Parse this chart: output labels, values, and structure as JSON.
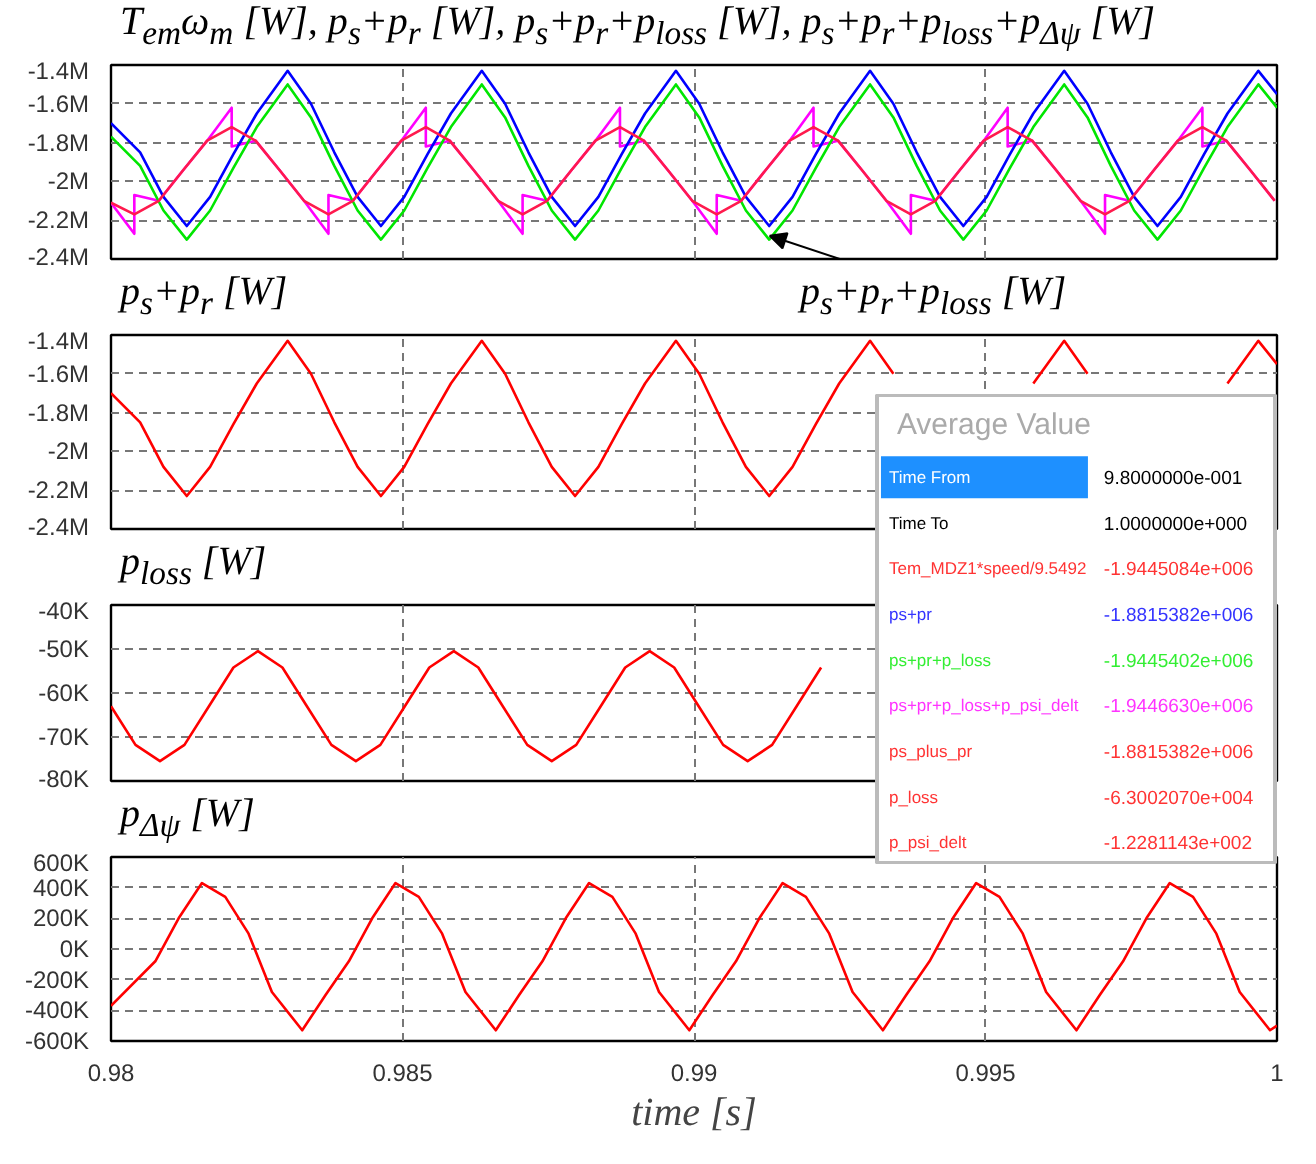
{
  "chart_data": [
    {
      "type": "line",
      "title": "T$_{em}$ω$_{m}$ [W], p$_{s}$+p$_{r}$ [W], p$_{s}$+p$_{r}$+p$_{loss}$ [W], p$_{s}$+p$_{r}$+p$_{loss}$+p$_{Δψ}$ [W]",
      "xlim": [
        0.98,
        1.0
      ],
      "xticks": [
        0.98,
        0.985,
        0.99,
        0.995,
        1
      ],
      "ylim": [
        -2400000,
        -1400000
      ],
      "yticks": [
        {
          "value": -2400000,
          "label": "-2.4M"
        },
        {
          "value": -2200000,
          "label": "-2.2M"
        },
        {
          "value": -2000000,
          "label": "-2M"
        },
        {
          "value": -1800000,
          "label": "-1.8M"
        },
        {
          "value": -1600000,
          "label": "-1.6M"
        },
        {
          "value": -1400000,
          "label": "-1.4M"
        }
      ],
      "grid": true,
      "tick_labels": "y",
      "annotations": [
        {
          "text": "p$_{s}$+p$_{r}$+p$_{loss}$ [W]",
          "x": 0.9913,
          "y": -2280000
        }
      ],
      "series": [
        {
          "color": "#ff00ff",
          "x": [
            0.98,
            0.9804,
            0.9804,
            0.98082,
            0.98123,
            0.98165,
            0.98207,
            0.98207,
            0.98248,
            0.9829,
            0.98331,
            0.98373,
            0.98373,
            0.98415,
            0.98456,
            0.98498,
            0.9854,
            0.9854,
            0.98581,
            0.98623,
            0.98664,
            0.98706,
            0.98706,
            0.98748,
            0.98789,
            0.98831,
            0.98873,
            0.98873,
            0.98914,
            0.98956,
            0.98997,
            0.99039,
            0.99039,
            0.99081,
            0.99122,
            0.99164,
            0.99205,
            0.99205,
            0.99247,
            0.99289,
            0.9933,
            0.99372,
            0.99372,
            0.99414,
            0.99455,
            0.99497,
            0.99538,
            0.99538,
            0.9958,
            0.99622,
            0.99663,
            0.99705,
            0.99705,
            0.99747,
            0.99788,
            0.9983,
            0.99872,
            0.99872,
            0.99913,
            0.99955,
            0.99996
          ],
          "values": [
            -2110000,
            -2270000,
            -2070000,
            -2100000,
            -1945000,
            -1790000,
            -1620000,
            -1820000,
            -1790000,
            -1945000,
            -2100000,
            -2270000,
            -2070000,
            -2100000,
            -1945000,
            -1790000,
            -1620000,
            -1820000,
            -1790000,
            -1945000,
            -2100000,
            -2270000,
            -2070000,
            -2100000,
            -1945000,
            -1790000,
            -1620000,
            -1820000,
            -1790000,
            -1945000,
            -2100000,
            -2270000,
            -2070000,
            -2100000,
            -1945000,
            -1790000,
            -1620000,
            -1820000,
            -1790000,
            -1945000,
            -2100000,
            -2270000,
            -2070000,
            -2100000,
            -1945000,
            -1790000,
            -1620000,
            -1820000,
            -1790000,
            -1945000,
            -2100000,
            -2270000,
            -2070000,
            -2100000,
            -1945000,
            -1790000,
            -1620000,
            -1820000,
            -1790000,
            -1945000,
            -2100000
          ]
        },
        {
          "color": "#00e600",
          "x": [
            0.98,
            0.9805,
            0.9809,
            0.9813,
            0.9817,
            0.9821,
            0.9825,
            0.98303,
            0.98343,
            0.98383,
            0.98423,
            0.98463,
            0.98503,
            0.98543,
            0.98583,
            0.98636,
            0.98676,
            0.98716,
            0.98756,
            0.98796,
            0.98836,
            0.98876,
            0.98916,
            0.98969,
            0.99009,
            0.99049,
            0.99089,
            0.99129,
            0.99169,
            0.99209,
            0.99249,
            0.99302,
            0.99342,
            0.99382,
            0.99422,
            0.99462,
            0.99502,
            0.99542,
            0.99582,
            0.99635,
            0.99675,
            0.99715,
            0.99755,
            0.99795,
            0.99835,
            0.99875,
            0.99915,
            0.99968,
            1.0
          ],
          "values": [
            -1770000,
            -1920000,
            -2150000,
            -2300000,
            -2150000,
            -1930000,
            -1720000,
            -1500000,
            -1670000,
            -1920000,
            -2150000,
            -2300000,
            -2150000,
            -1930000,
            -1720000,
            -1500000,
            -1670000,
            -1920000,
            -2150000,
            -2300000,
            -2150000,
            -1930000,
            -1720000,
            -1500000,
            -1670000,
            -1920000,
            -2150000,
            -2300000,
            -2150000,
            -1930000,
            -1720000,
            -1500000,
            -1670000,
            -1920000,
            -2150000,
            -2300000,
            -2150000,
            -1930000,
            -1720000,
            -1500000,
            -1670000,
            -1920000,
            -2150000,
            -2300000,
            -2150000,
            -1930000,
            -1720000,
            -1500000,
            -1620000
          ]
        },
        {
          "color": "#0000ff",
          "x": [
            0.98,
            0.9805,
            0.9809,
            0.9813,
            0.9817,
            0.9821,
            0.9825,
            0.98303,
            0.98343,
            0.98383,
            0.98423,
            0.98463,
            0.98503,
            0.98543,
            0.98583,
            0.98636,
            0.98676,
            0.98716,
            0.98756,
            0.98796,
            0.98836,
            0.98876,
            0.98916,
            0.98969,
            0.99009,
            0.99049,
            0.99089,
            0.99129,
            0.99169,
            0.99209,
            0.99249,
            0.99302,
            0.99342,
            0.99382,
            0.99422,
            0.99462,
            0.99502,
            0.99542,
            0.99582,
            0.99635,
            0.99675,
            0.99715,
            0.99755,
            0.99795,
            0.99835,
            0.99875,
            0.99915,
            0.99968,
            1.0
          ],
          "values": [
            -1700000,
            -1850000,
            -2080000,
            -2230000,
            -2080000,
            -1860000,
            -1650000,
            -1430000,
            -1600000,
            -1850000,
            -2080000,
            -2230000,
            -2080000,
            -1860000,
            -1650000,
            -1430000,
            -1600000,
            -1850000,
            -2080000,
            -2230000,
            -2080000,
            -1860000,
            -1650000,
            -1430000,
            -1600000,
            -1850000,
            -2080000,
            -2230000,
            -2080000,
            -1860000,
            -1650000,
            -1430000,
            -1600000,
            -1850000,
            -2080000,
            -2230000,
            -2080000,
            -1860000,
            -1650000,
            -1430000,
            -1600000,
            -1850000,
            -2080000,
            -2230000,
            -2080000,
            -1860000,
            -1650000,
            -1430000,
            -1550000
          ]
        },
        {
          "color": "#ff1a4d",
          "x": [
            0.98,
            0.9804,
            0.98082,
            0.98123,
            0.98165,
            0.98207,
            0.98248,
            0.9829,
            0.98331,
            0.98373,
            0.98415,
            0.98456,
            0.98498,
            0.9854,
            0.98581,
            0.98623,
            0.98664,
            0.98706,
            0.98748,
            0.98789,
            0.98831,
            0.98873,
            0.98914,
            0.98956,
            0.98997,
            0.99039,
            0.99081,
            0.99122,
            0.99164,
            0.99205,
            0.99247,
            0.99289,
            0.9933,
            0.99372,
            0.99414,
            0.99455,
            0.99497,
            0.99538,
            0.9958,
            0.99622,
            0.99663,
            0.99705,
            0.99747,
            0.99788,
            0.9983,
            0.99872,
            0.99913,
            0.99955,
            0.99996
          ],
          "values": [
            -2110000,
            -2170000,
            -2100000,
            -1945000,
            -1790000,
            -1720000,
            -1790000,
            -1945000,
            -2100000,
            -2170000,
            -2100000,
            -1945000,
            -1790000,
            -1720000,
            -1790000,
            -1945000,
            -2100000,
            -2170000,
            -2100000,
            -1945000,
            -1790000,
            -1720000,
            -1790000,
            -1945000,
            -2100000,
            -2170000,
            -2100000,
            -1945000,
            -1790000,
            -1720000,
            -1790000,
            -1945000,
            -2100000,
            -2170000,
            -2100000,
            -1945000,
            -1790000,
            -1720000,
            -1790000,
            -1945000,
            -2100000,
            -2170000,
            -2100000,
            -1945000,
            -1790000,
            -1720000,
            -1790000,
            -1945000,
            -2100000
          ]
        }
      ]
    },
    {
      "type": "line",
      "title": "p$_{s}$+p$_{r}$ [W]",
      "xlim": [
        0.98,
        1.0
      ],
      "xticks": [
        0.98,
        0.985,
        0.99,
        0.995,
        1
      ],
      "ylim": [
        -2400000,
        -1400000
      ],
      "yticks": [
        {
          "value": -2400000,
          "label": "-2.4M"
        },
        {
          "value": -2200000,
          "label": "-2.2M"
        },
        {
          "value": -2000000,
          "label": "-2M"
        },
        {
          "value": -1800000,
          "label": "-1.8M"
        },
        {
          "value": -1600000,
          "label": "-1.6M"
        },
        {
          "value": -1400000,
          "label": "-1.4M"
        }
      ],
      "grid": true,
      "tick_labels": "y",
      "series": [
        {
          "color": "#ff0000",
          "x": [
            0.98,
            0.9805,
            0.9809,
            0.9813,
            0.9817,
            0.9821,
            0.9825,
            0.98303,
            0.98343,
            0.98383,
            0.98423,
            0.98463,
            0.98503,
            0.98543,
            0.98583,
            0.98636,
            0.98676,
            0.98716,
            0.98756,
            0.98796,
            0.98836,
            0.98876,
            0.98916,
            0.98969,
            0.99009,
            0.99049,
            0.99089,
            0.99129,
            0.99169,
            0.99209,
            0.99249,
            0.99302,
            0.99342,
            0.99382,
            0.99422,
            0.99462,
            0.99502,
            0.99542,
            0.99582,
            0.99635,
            0.99675,
            0.99715,
            0.99755,
            0.99795,
            0.99835,
            0.99875,
            0.99915,
            0.99968,
            1.0
          ],
          "values": [
            -1700000,
            -1850000,
            -2080000,
            -2230000,
            -2080000,
            -1860000,
            -1650000,
            -1430000,
            -1600000,
            -1850000,
            -2080000,
            -2230000,
            -2080000,
            -1860000,
            -1650000,
            -1430000,
            -1600000,
            -1850000,
            -2080000,
            -2230000,
            -2080000,
            -1860000,
            -1650000,
            -1430000,
            -1600000,
            -1850000,
            -2080000,
            -2230000,
            -2080000,
            -1860000,
            -1650000,
            -1430000,
            -1600000,
            null,
            null,
            null,
            null,
            null,
            -1650000,
            -1430000,
            -1600000,
            null,
            null,
            null,
            null,
            null,
            -1650000,
            -1430000,
            -1550000
          ]
        }
      ]
    },
    {
      "type": "line",
      "title": "p$_{loss}$ [W]",
      "xlim": [
        0.98,
        1.0
      ],
      "xticks": [
        0.98,
        0.985,
        0.99,
        0.995,
        1
      ],
      "ylim": [
        -80000,
        -40000
      ],
      "yticks": [
        {
          "value": -80000,
          "label": "-80K"
        },
        {
          "value": -70000,
          "label": "-70K"
        },
        {
          "value": -60000,
          "label": "-60K"
        },
        {
          "value": -50000,
          "label": "-50K"
        },
        {
          "value": -40000,
          "label": "-40K"
        }
      ],
      "grid": true,
      "tick_labels": "y",
      "series": [
        {
          "color": "#ff0000",
          "x": [
            0.98,
            0.98042,
            0.98084,
            0.98126,
            0.98168,
            0.9821,
            0.98252,
            0.98294,
            0.98336,
            0.98378,
            0.9842,
            0.98462,
            0.98504,
            0.98546,
            0.98588,
            0.9863,
            0.98672,
            0.98714,
            0.98756,
            0.98798,
            0.9884,
            0.98882,
            0.98924,
            0.98966,
            0.99008,
            0.9905,
            0.99092,
            0.99134,
            0.99176,
            0.99218
          ],
          "values": [
            -63000,
            -71800,
            -75500,
            -71800,
            -63000,
            -54200,
            -50500,
            -54200,
            -63000,
            -71800,
            -75500,
            -71800,
            -63000,
            -54200,
            -50500,
            -54200,
            -63000,
            -71800,
            -75500,
            -71800,
            -63000,
            -54200,
            -50500,
            -54200,
            -63000,
            -71800,
            -75500,
            -71800,
            -63000,
            -54200
          ]
        }
      ]
    },
    {
      "type": "line",
      "title": "p$_{Δψ}$ [W]",
      "xlabel": "time [s]",
      "xlim": [
        0.98,
        1.0
      ],
      "xticks": [
        0.98,
        0.985,
        0.99,
        0.995,
        1
      ],
      "ylim": [
        -600000,
        600000
      ],
      "yticks": [
        {
          "value": -600000,
          "label": "-600K"
        },
        {
          "value": -400000,
          "label": "-400K"
        },
        {
          "value": -200000,
          "label": "-200K"
        },
        {
          "value": 0,
          "label": "0K"
        },
        {
          "value": 200000,
          "label": "200K"
        },
        {
          "value": 400000,
          "label": "400K"
        },
        {
          "value": 600000,
          "label": "600K"
        }
      ],
      "grid": true,
      "series": [
        {
          "color": "#ff0000",
          "x": [
            0.98,
            0.98076,
            0.98116,
            0.98156,
            0.98196,
            0.98236,
            0.98276,
            0.98328,
            0.98368,
            0.98408,
            0.98448,
            0.98488,
            0.98528,
            0.98568,
            0.98608,
            0.9866,
            0.987,
            0.9874,
            0.9878,
            0.9882,
            0.9886,
            0.989,
            0.9894,
            0.98992,
            0.99032,
            0.99072,
            0.99112,
            0.99152,
            0.99192,
            0.99232,
            0.99272,
            0.99324,
            0.99364,
            0.99404,
            0.99444,
            0.99484,
            0.99524,
            0.99564,
            0.99604,
            0.99656,
            0.99696,
            0.99736,
            0.99776,
            0.99816,
            0.99856,
            0.99896,
            0.99936,
            0.99988,
            1.0
          ],
          "values": [
            -370000,
            -80000,
            200000,
            430000,
            340000,
            100000,
            -280000,
            -530000,
            -300000,
            -80000,
            200000,
            430000,
            340000,
            100000,
            -280000,
            -530000,
            -300000,
            -80000,
            200000,
            430000,
            340000,
            100000,
            -280000,
            -530000,
            -300000,
            -80000,
            200000,
            430000,
            340000,
            100000,
            -280000,
            -530000,
            -300000,
            -80000,
            200000,
            430000,
            340000,
            100000,
            -280000,
            -530000,
            -300000,
            -80000,
            200000,
            430000,
            340000,
            100000,
            -280000,
            -530000,
            -500000
          ]
        }
      ]
    },
    {
      "type": "other",
      "title": "Average Value",
      "categories": [
        "Time From",
        "Time To",
        "Tem_MDZ1*speed/9.5492",
        "ps+pr",
        "ps+pr+p_loss",
        "ps+pr+p_loss+p_psi_delt",
        "ps_plus_pr",
        "p_loss",
        "p_psi_delt"
      ],
      "value_labels": [
        "9.8000000e-001",
        "1.0000000e+000",
        "-1.9445084e+006",
        "-1.8815382e+006",
        "-1.9445402e+006",
        "-1.9446630e+006",
        "-1.8815382e+006",
        "-6.3002070e+004",
        "-1.2281143e+002"
      ],
      "colors": [
        "#000000",
        "#000000",
        "#ff3333",
        "#3333ff",
        "#33ee33",
        "#ff33ff",
        "#ff3333",
        "#ff3333",
        "#ff3333"
      ]
    }
  ]
}
